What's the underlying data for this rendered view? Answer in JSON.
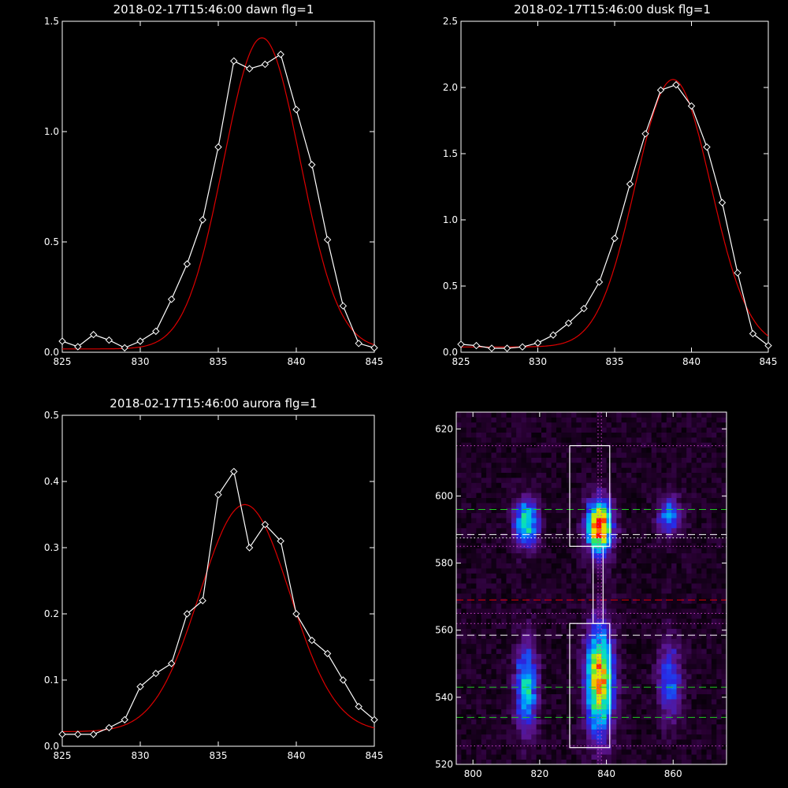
{
  "colors": {
    "background": "#000000",
    "axes": "#ffffff",
    "data_line": "#ffffff",
    "fit_line": "#dd0000",
    "green_dash": "#22cc22",
    "white_dash": "#ffffff",
    "red_dash": "#dd0000",
    "dotted_line": "#cc44cc"
  },
  "chart_data": [
    {
      "id": "dawn",
      "type": "line",
      "title": "2018-02-17T15:46:00 dawn flg=1",
      "xlim": [
        825,
        845
      ],
      "ylim": [
        0,
        1.5
      ],
      "xticks": [
        825,
        830,
        835,
        840,
        845
      ],
      "yticks": [
        0.0,
        0.5,
        1.0,
        1.5
      ],
      "ytick_labels": [
        "0.0",
        "0.5",
        "1.0",
        "1.5"
      ],
      "series": [
        {
          "kind": "data",
          "x": [
            825,
            826,
            827,
            828,
            829,
            830,
            831,
            832,
            833,
            834,
            835,
            836,
            837,
            838,
            839,
            840,
            841,
            842,
            843,
            844,
            845
          ],
          "y": [
            0.05,
            0.025,
            0.08,
            0.055,
            0.02,
            0.05,
            0.095,
            0.24,
            0.4,
            0.6,
            0.93,
            1.32,
            1.285,
            1.305,
            1.35,
            1.1,
            0.85,
            0.51,
            0.21,
            0.04,
            0.02
          ]
        },
        {
          "kind": "fit",
          "gaussian": {
            "amplitude": 1.41,
            "center": 837.8,
            "sigma": 2.45,
            "baseline": 0.015
          }
        }
      ]
    },
    {
      "id": "dusk",
      "type": "line",
      "title": "2018-02-17T15:46:00 dusk flg=1",
      "xlim": [
        825,
        845
      ],
      "ylim": [
        0,
        2.5
      ],
      "xticks": [
        825,
        830,
        835,
        840,
        845
      ],
      "yticks": [
        0.0,
        0.5,
        1.0,
        1.5,
        2.0,
        2.5
      ],
      "ytick_labels": [
        "0.0",
        "0.5",
        "1.0",
        "1.5",
        "2.0",
        "2.5"
      ],
      "series": [
        {
          "kind": "data",
          "x": [
            825,
            826,
            827,
            828,
            829,
            830,
            831,
            832,
            833,
            834,
            835,
            836,
            837,
            838,
            839,
            840,
            841,
            842,
            843,
            844,
            845
          ],
          "y": [
            0.06,
            0.05,
            0.03,
            0.03,
            0.04,
            0.07,
            0.13,
            0.22,
            0.33,
            0.53,
            0.86,
            1.27,
            1.65,
            1.98,
            2.02,
            1.86,
            1.55,
            1.13,
            0.6,
            0.14,
            0.05
          ]
        },
        {
          "kind": "fit",
          "gaussian": {
            "amplitude": 2.02,
            "center": 838.8,
            "sigma": 2.45,
            "baseline": 0.04
          }
        }
      ]
    },
    {
      "id": "aurora",
      "type": "line",
      "title": "2018-02-17T15:46:00 aurora flg=1",
      "xlim": [
        825,
        845
      ],
      "ylim": [
        0,
        0.5
      ],
      "xticks": [
        825,
        830,
        835,
        840,
        845
      ],
      "yticks": [
        0.0,
        0.1,
        0.2,
        0.3,
        0.4,
        0.5
      ],
      "ytick_labels": [
        "0.0",
        "0.1",
        "0.2",
        "0.3",
        "0.4",
        "0.5"
      ],
      "series": [
        {
          "kind": "data",
          "x": [
            825,
            826,
            827,
            828,
            829,
            830,
            831,
            832,
            833,
            834,
            835,
            836,
            837,
            838,
            839,
            840,
            841,
            842,
            843,
            844,
            845
          ],
          "y": [
            0.018,
            0.018,
            0.018,
            0.028,
            0.04,
            0.09,
            0.11,
            0.125,
            0.2,
            0.22,
            0.38,
            0.415,
            0.3,
            0.335,
            0.31,
            0.2,
            0.16,
            0.14,
            0.1,
            0.06,
            0.04
          ]
        },
        {
          "kind": "fit",
          "gaussian": {
            "amplitude": 0.343,
            "center": 836.7,
            "sigma": 2.9,
            "baseline": 0.022
          }
        }
      ]
    },
    {
      "id": "image",
      "type": "heatmap",
      "title": "",
      "xlim": [
        795,
        876
      ],
      "ylim": [
        520,
        625
      ],
      "xticks": [
        800,
        820,
        840,
        860
      ],
      "yticks": [
        520,
        540,
        560,
        580,
        600,
        620
      ],
      "colormap": "rainbow",
      "blobs": [
        {
          "cx": 816,
          "cy": 592,
          "sx": 2.5,
          "sy": 5,
          "amp": 0.55
        },
        {
          "cx": 838,
          "cy": 591,
          "sx": 2.6,
          "sy": 5.5,
          "amp": 0.95
        },
        {
          "cx": 859,
          "cy": 594,
          "sx": 2.5,
          "sy": 4,
          "amp": 0.4
        },
        {
          "cx": 816,
          "cy": 543,
          "sx": 2.3,
          "sy": 9,
          "amp": 0.5
        },
        {
          "cx": 838,
          "cy": 545,
          "sx": 2.8,
          "sy": 11,
          "amp": 0.85
        },
        {
          "cx": 859,
          "cy": 545,
          "sx": 2.5,
          "sy": 8,
          "amp": 0.35
        }
      ],
      "boxes": [
        {
          "x": [
            829,
            841
          ],
          "y": [
            585,
            615
          ]
        },
        {
          "x": [
            836,
            839
          ],
          "y": [
            562,
            585
          ]
        },
        {
          "x": [
            829,
            841
          ],
          "y": [
            525,
            562
          ]
        }
      ],
      "hlines": [
        {
          "y": 615,
          "style": "dotted",
          "color": "dotted_line"
        },
        {
          "y": 596,
          "style": "dashed",
          "color": "green_dash"
        },
        {
          "y": 588.5,
          "style": "dashed",
          "color": "white_dash"
        },
        {
          "y": 587.5,
          "style": "dotted",
          "color": "white_dash"
        },
        {
          "y": 585,
          "style": "dotted",
          "color": "dotted_line"
        },
        {
          "y": 569,
          "style": "dashed",
          "color": "red_dash"
        },
        {
          "y": 565,
          "style": "dotted",
          "color": "dotted_line"
        },
        {
          "y": 562,
          "style": "dotted",
          "color": "dotted_line"
        },
        {
          "y": 558.5,
          "style": "dashed",
          "color": "white_dash"
        },
        {
          "y": 543,
          "style": "dashed",
          "color": "green_dash"
        },
        {
          "y": 534,
          "style": "dashed",
          "color": "green_dash"
        },
        {
          "y": 525.5,
          "style": "dotted",
          "color": "dotted_line"
        }
      ],
      "vlines": [
        {
          "x": 837.5,
          "style": "dotted",
          "color": "dotted_line"
        },
        {
          "x": 838.5,
          "style": "dotted",
          "color": "dotted_line"
        }
      ]
    }
  ]
}
